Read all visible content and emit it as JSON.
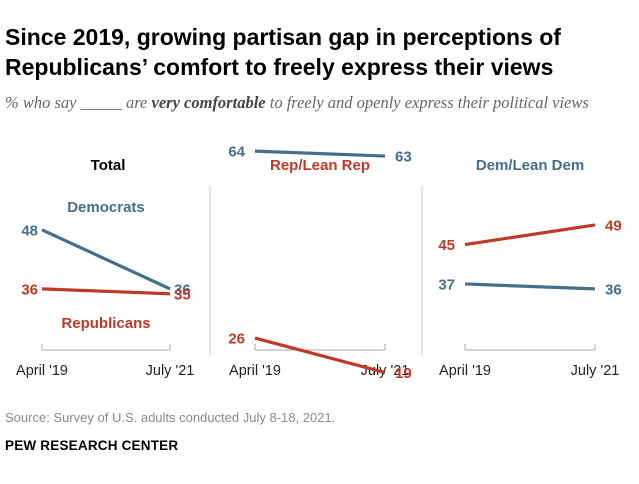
{
  "header": {
    "title": "Since 2019, growing partisan gap in perceptions of Republicans’ comfort to freely express their views",
    "subtitle_prefix": "% who say _____ are ",
    "subtitle_emphasis": "very comfortable",
    "subtitle_suffix": " to freely and openly express their political views"
  },
  "footer": {
    "source": "Source: Survey of U.S. adults conducted July 8-18, 2021.",
    "organization": "PEW RESEARCH CENTER"
  },
  "colors": {
    "democrats": "#436f8a",
    "republicans": "#bf3927",
    "axis": "#aaaaaa",
    "panel_divider": "#cccccc"
  },
  "chart_data": [
    {
      "type": "line",
      "title": "Total",
      "title_color": "#000000",
      "x": [
        "April '19",
        "July '21"
      ],
      "ylim": [
        0,
        100
      ],
      "series": [
        {
          "name": "Democrats",
          "values": [
            48,
            36
          ],
          "color": "#436f8a",
          "label": "Democrats",
          "label_pos": "above"
        },
        {
          "name": "Republicans",
          "values": [
            36,
            35
          ],
          "color": "#bf3927",
          "label": "Republicans",
          "label_pos": "below"
        }
      ]
    },
    {
      "type": "line",
      "title": "Rep/Lean Rep",
      "title_color": "#bf3927",
      "x": [
        "April '19",
        "July '21"
      ],
      "ylim": [
        0,
        100
      ],
      "series": [
        {
          "name": "Democrats",
          "values": [
            64,
            63
          ],
          "color": "#436f8a"
        },
        {
          "name": "Republicans",
          "values": [
            26,
            19
          ],
          "color": "#bf3927"
        }
      ]
    },
    {
      "type": "line",
      "title": "Dem/Lean Dem",
      "title_color": "#436f8a",
      "x": [
        "April '19",
        "July '21"
      ],
      "ylim": [
        0,
        100
      ],
      "series": [
        {
          "name": "Democrats",
          "values": [
            37,
            36
          ],
          "color": "#436f8a"
        },
        {
          "name": "Republicans",
          "values": [
            45,
            49
          ],
          "color": "#bf3927"
        }
      ]
    }
  ]
}
